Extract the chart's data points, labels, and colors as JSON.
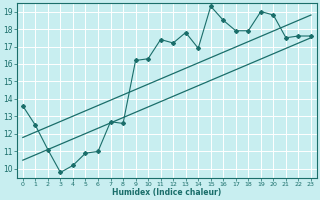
{
  "xlabel": "Humidex (Indice chaleur)",
  "ylabel": "",
  "xlim": [
    -0.5,
    23.5
  ],
  "ylim": [
    9.5,
    19.5
  ],
  "xticks": [
    0,
    1,
    2,
    3,
    4,
    5,
    6,
    7,
    8,
    9,
    10,
    11,
    12,
    13,
    14,
    15,
    16,
    17,
    18,
    19,
    20,
    21,
    22,
    23
  ],
  "yticks": [
    10,
    11,
    12,
    13,
    14,
    15,
    16,
    17,
    18,
    19
  ],
  "bg_color": "#c8eef0",
  "line_color": "#1a6e6a",
  "grid_color": "#ffffff",
  "lines": [
    {
      "x": [
        0,
        1,
        2,
        3,
        4,
        5,
        6,
        7,
        8,
        9,
        10,
        11,
        12,
        13,
        14,
        15,
        16,
        17,
        18,
        19,
        20,
        21,
        22,
        23
      ],
      "y": [
        13.6,
        12.5,
        11.1,
        9.8,
        10.2,
        10.9,
        11.0,
        12.7,
        12.6,
        16.2,
        16.3,
        17.4,
        17.2,
        17.8,
        16.9,
        19.3,
        18.5,
        17.9,
        17.9,
        19.0,
        18.8,
        17.5,
        17.6,
        17.6
      ],
      "marker": "D",
      "markersize": 2.0,
      "linewidth": 0.8
    },
    {
      "x": [
        0,
        23
      ],
      "y": [
        11.8,
        18.8
      ],
      "marker": null,
      "markersize": 0,
      "linewidth": 0.9
    },
    {
      "x": [
        0,
        23
      ],
      "y": [
        10.5,
        17.5
      ],
      "marker": null,
      "markersize": 0,
      "linewidth": 0.9
    }
  ]
}
